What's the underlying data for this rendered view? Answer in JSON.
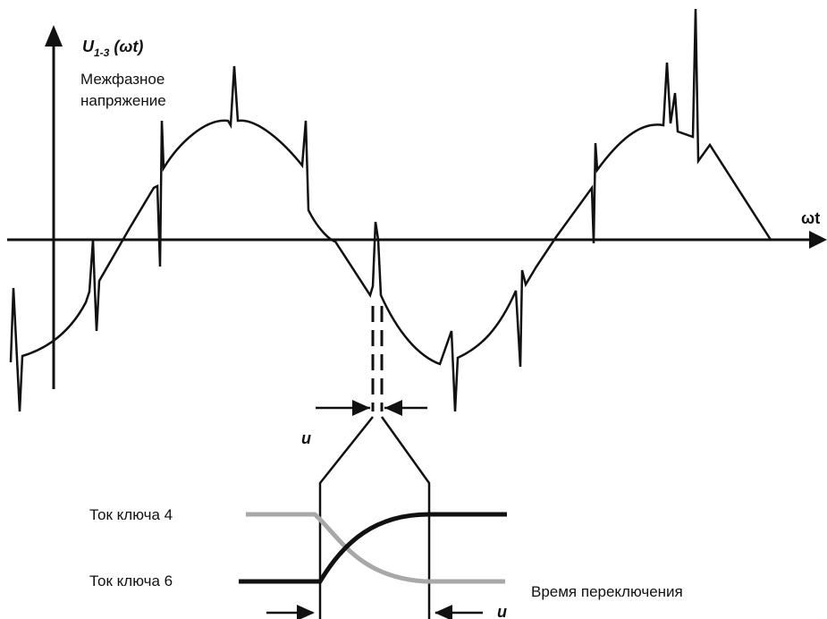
{
  "labels": {
    "y_axis_symbol": "U",
    "y_axis_subscript": "1-3",
    "y_axis_arg": " (ωt)",
    "y_axis_caption_line1": "Межфазное",
    "y_axis_caption_line2": "напряжение",
    "x_axis": "ωt",
    "commutation_interval_top": "u",
    "commutation_interval_bottom": "u",
    "switch4_current": "Ток ключа  4",
    "switch6_current": "Ток ключа  6",
    "switching_time": "Время переключения"
  },
  "colors": {
    "waveform": "#111111",
    "switch4_curve": "#a8a8a8",
    "switch6_curve": "#111111",
    "axes": "#111111"
  }
}
